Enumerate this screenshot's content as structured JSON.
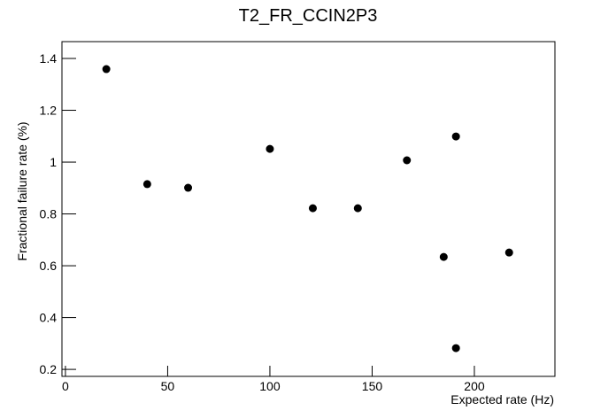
{
  "chart_data": {
    "type": "scatter",
    "title": "T2_FR_CCIN2P3",
    "x_label": "Expected rate (Hz)",
    "y_label": "Fractional failure rate (%)",
    "series": [
      {
        "color": "#000000",
        "x": [
          20,
          40,
          60,
          100,
          121,
          143,
          167,
          185,
          191,
          191,
          217
        ],
        "values": [
          1.359,
          0.915,
          0.901,
          1.051,
          0.822,
          0.822,
          1.007,
          0.634,
          1.099,
          0.282,
          0.651
        ]
      }
    ],
    "xlim": [
      -1.7,
      239.4
    ],
    "xticks": [
      0,
      50,
      100,
      150,
      200
    ],
    "ylim": [
      0.173,
      1.465
    ],
    "yticks": [
      0.2,
      0.4,
      0.6,
      0.8,
      1,
      1.2,
      1.4
    ]
  }
}
